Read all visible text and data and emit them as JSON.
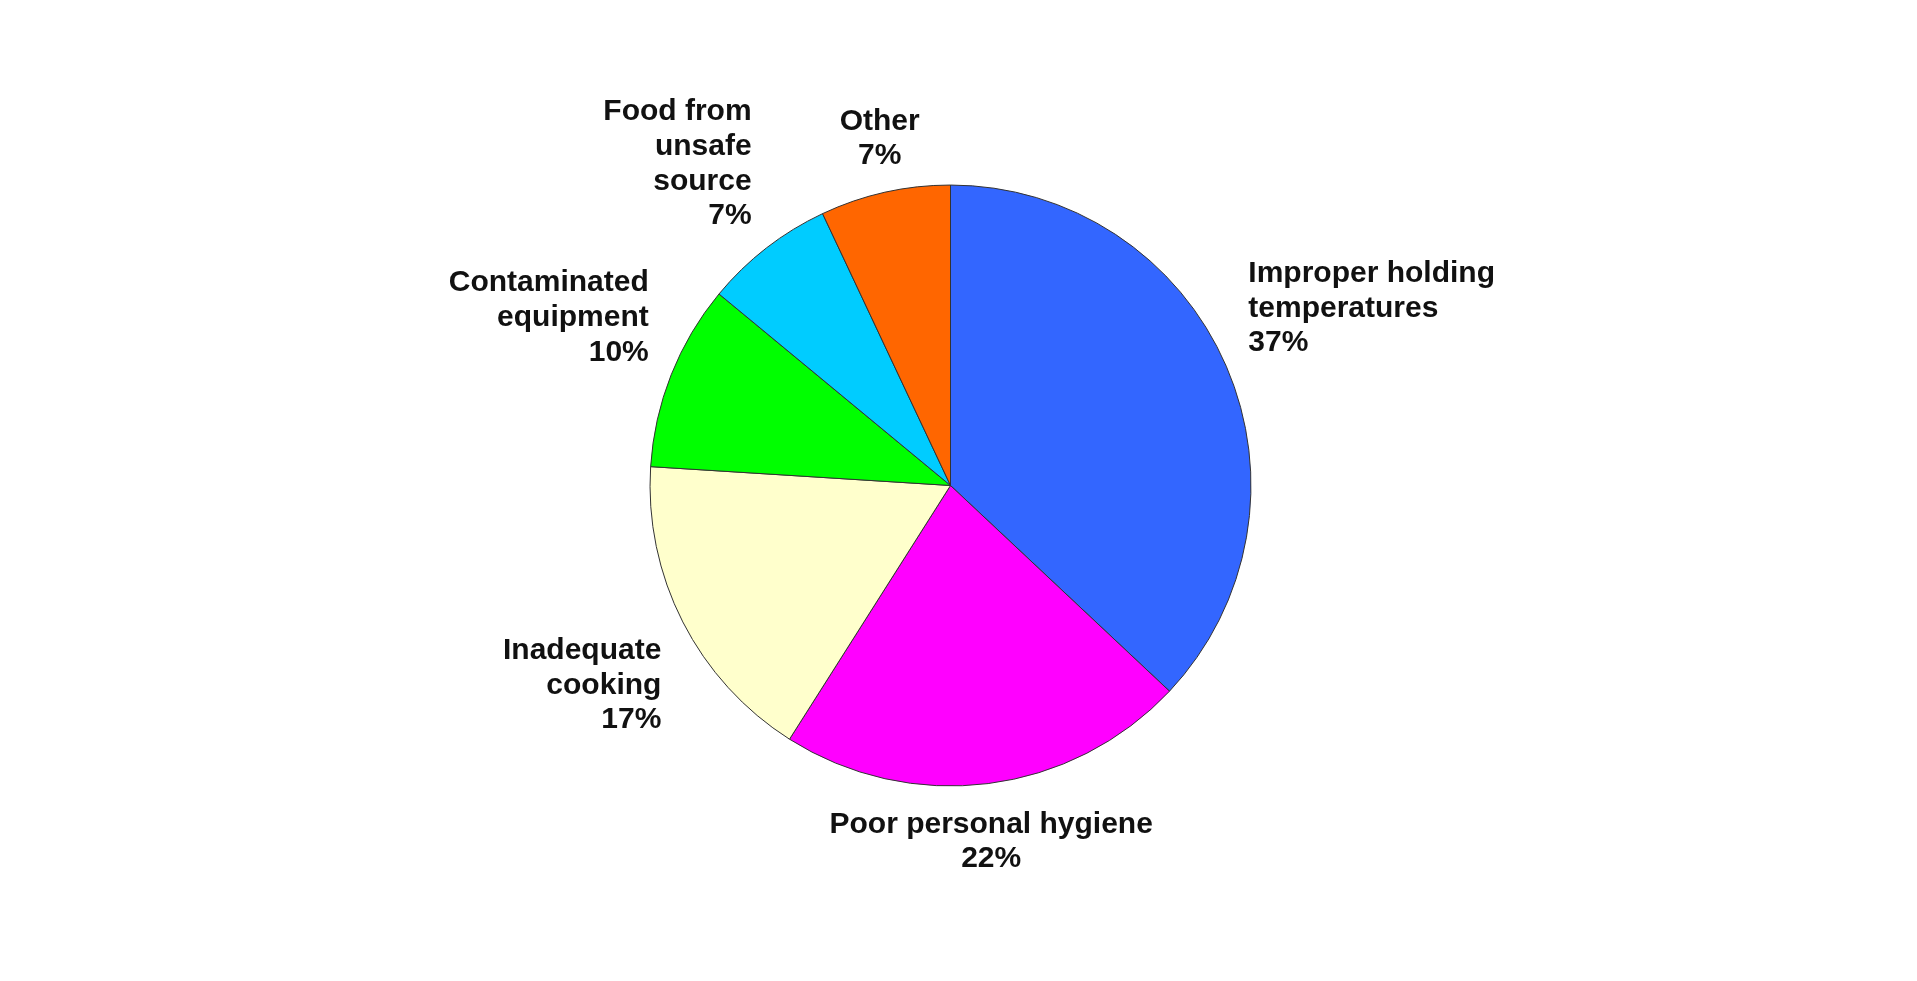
{
  "chart_data": {
    "type": "pie",
    "categories": [
      "Improper holding\ntemperatures",
      "Poor personal hygiene",
      "Inadequate\ncooking",
      "Contaminated\nequipment",
      "Food from\nunsafe\nsource",
      "Other"
    ],
    "values": [
      37,
      22,
      17,
      10,
      7,
      7
    ],
    "value_labels": [
      "37%",
      "22%",
      "17%",
      "10%",
      "7%",
      "7%"
    ],
    "colors": [
      "#3366ff",
      "#ff00ff",
      "#ffffcc",
      "#00ff00",
      "#00ccff",
      "#ff6600"
    ],
    "legend": false
  }
}
